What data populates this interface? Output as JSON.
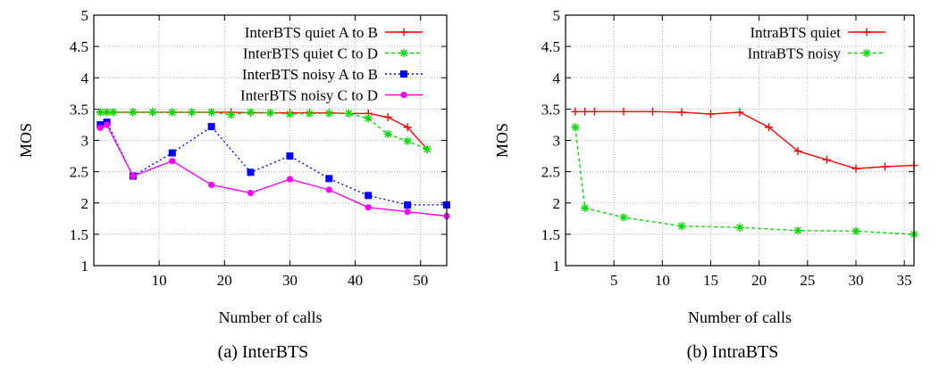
{
  "chart_data": [
    {
      "type": "line",
      "caption": "(a) InterBTS",
      "xlabel": "Number of calls",
      "ylabel": "MOS",
      "xlim": [
        0,
        54
      ],
      "ylim": [
        1,
        5
      ],
      "xticks": [
        10,
        20,
        30,
        40,
        50
      ],
      "yticks": [
        1,
        1.5,
        2,
        2.5,
        3,
        3.5,
        4,
        4.5,
        5
      ],
      "grid": true,
      "legend_position": "top-right",
      "series": [
        {
          "name": "InterBTS quiet A to B",
          "color": "#ff0000",
          "dash": "solid",
          "marker": "plus",
          "x": [
            1,
            2,
            3,
            6,
            9,
            12,
            15,
            18,
            21,
            24,
            27,
            30,
            33,
            36,
            39,
            42,
            45,
            48,
            51
          ],
          "y": [
            3.45,
            3.45,
            3.45,
            3.45,
            3.45,
            3.45,
            3.45,
            3.45,
            3.45,
            3.44,
            3.44,
            3.44,
            3.44,
            3.44,
            3.43,
            3.43,
            3.37,
            3.21,
            2.86
          ]
        },
        {
          "name": "InterBTS quiet C to D",
          "color": "#00dd00",
          "dash": "dashed",
          "marker": "star",
          "x": [
            1,
            2,
            3,
            6,
            9,
            12,
            15,
            18,
            21,
            24,
            27,
            30,
            33,
            36,
            39,
            42,
            45,
            48,
            51
          ],
          "y": [
            3.45,
            3.45,
            3.45,
            3.45,
            3.45,
            3.45,
            3.45,
            3.45,
            3.41,
            3.45,
            3.44,
            3.42,
            3.43,
            3.43,
            3.43,
            3.35,
            3.1,
            2.99,
            2.86
          ]
        },
        {
          "name": "InterBTS noisy A to B",
          "color": "#0000ff",
          "dash": "dotted",
          "marker": "square",
          "x": [
            1,
            2,
            6,
            12,
            18,
            24,
            30,
            36,
            42,
            48,
            54
          ],
          "y": [
            3.25,
            3.29,
            2.43,
            2.8,
            3.22,
            2.49,
            2.75,
            2.39,
            2.12,
            1.97,
            1.97
          ]
        },
        {
          "name": "InterBTS noisy C to D",
          "color": "#ff00ff",
          "dash": "solid",
          "marker": "circle",
          "x": [
            1,
            2,
            6,
            12,
            18,
            24,
            30,
            36,
            42,
            48,
            54
          ],
          "y": [
            3.2,
            3.25,
            2.43,
            2.67,
            2.29,
            2.16,
            2.38,
            2.21,
            1.93,
            1.86,
            1.79
          ]
        }
      ]
    },
    {
      "type": "line",
      "caption": "(b) IntraBTS",
      "xlabel": "Number of calls",
      "ylabel": "MOS",
      "xlim": [
        0,
        36
      ],
      "ylim": [
        1,
        5
      ],
      "xticks": [
        5,
        10,
        15,
        20,
        25,
        30,
        35
      ],
      "yticks": [
        1,
        1.5,
        2,
        2.5,
        3,
        3.5,
        4,
        4.5,
        5
      ],
      "grid": true,
      "legend_position": "top-right",
      "series": [
        {
          "name": "IntraBTS quiet",
          "color": "#ff0000",
          "dash": "solid",
          "marker": "plus",
          "x": [
            1,
            2,
            3,
            6,
            9,
            12,
            15,
            18,
            21,
            24,
            27,
            30,
            33,
            36
          ],
          "y": [
            3.46,
            3.46,
            3.46,
            3.46,
            3.46,
            3.45,
            3.42,
            3.45,
            3.21,
            2.83,
            2.69,
            2.55,
            2.58,
            2.6
          ]
        },
        {
          "name": "IntraBTS noisy",
          "color": "#00dd00",
          "dash": "dashed",
          "marker": "star",
          "x": [
            1,
            2,
            6,
            12,
            18,
            24,
            30,
            36
          ],
          "y": [
            3.21,
            1.92,
            1.77,
            1.63,
            1.61,
            1.56,
            1.55,
            1.5
          ]
        }
      ]
    }
  ]
}
